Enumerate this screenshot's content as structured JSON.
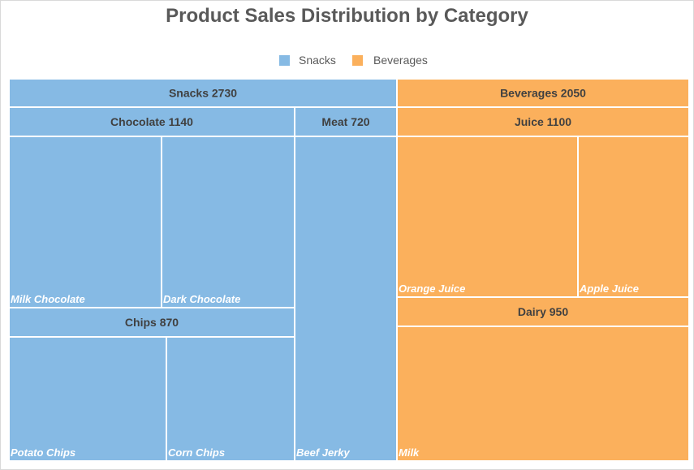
{
  "chart_data": {
    "type": "treemap",
    "title": "Product Sales Distribution by Category",
    "legend": {
      "placement": "top",
      "entries": [
        {
          "name": "Snacks",
          "color": "#86BAE4"
        },
        {
          "name": "Beverages",
          "color": "#FBB05C"
        }
      ]
    },
    "groups": [
      {
        "name": "Snacks",
        "value": 2730,
        "label": "Snacks 2730",
        "color": "#86BAE4",
        "subgroups": [
          {
            "name": "Chocolate",
            "value": 1140,
            "label": "Chocolate 1140",
            "leaves": [
              {
                "name": "Milk Chocolate"
              },
              {
                "name": "Dark Chocolate"
              }
            ]
          },
          {
            "name": "Chips",
            "value": 870,
            "label": "Chips 870",
            "leaves": [
              {
                "name": "Potato Chips"
              },
              {
                "name": "Corn Chips"
              }
            ]
          },
          {
            "name": "Meat",
            "value": 720,
            "label": "Meat 720",
            "leaves": [
              {
                "name": "Beef Jerky"
              }
            ]
          }
        ]
      },
      {
        "name": "Beverages",
        "value": 2050,
        "label": "Beverages 2050",
        "color": "#FBB05C",
        "subgroups": [
          {
            "name": "Juice",
            "value": 1100,
            "label": "Juice 1100",
            "leaves": [
              {
                "name": "Orange Juice"
              },
              {
                "name": "Apple Juice"
              }
            ]
          },
          {
            "name": "Dairy",
            "value": 950,
            "label": "Dairy 950",
            "leaves": [
              {
                "name": "Milk"
              }
            ]
          }
        ]
      }
    ]
  }
}
